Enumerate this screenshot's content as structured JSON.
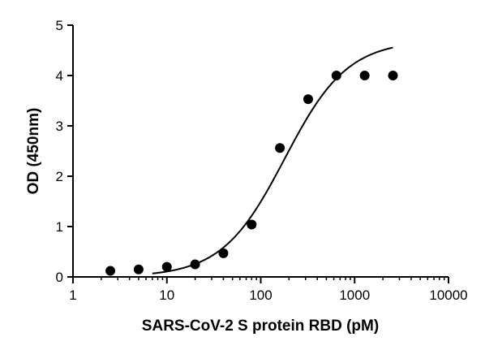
{
  "chart_data": {
    "type": "scatter",
    "title": "",
    "xlabel": "SARS-CoV-2 S protein RBD (pM)",
    "ylabel": "OD (450nm)",
    "xscale": "log",
    "xlim": [
      1,
      10000
    ],
    "ylim": [
      0,
      5
    ],
    "xticks": [
      "1",
      "10",
      "100",
      "1000",
      "10000"
    ],
    "yticks": [
      "0",
      "1",
      "2",
      "3",
      "4",
      "5"
    ],
    "grid": false,
    "legend": "none",
    "colors": {
      "points": "#000000",
      "curve": "#000000",
      "axes": "#000000"
    },
    "series": [
      {
        "x": [
          2.5,
          5,
          10,
          20,
          40,
          80,
          160,
          320,
          640,
          1280,
          2560
        ],
        "y": [
          0.12,
          0.15,
          0.2,
          0.25,
          0.47,
          1.04,
          2.56,
          3.53,
          4.0,
          4.0,
          4.0
        ]
      }
    ],
    "fit_curve": {
      "model": "four-parameter logistic",
      "bottom": 0,
      "top": 4.7,
      "ec50": 180,
      "hill": 1.3,
      "x_start": 7,
      "x_end": 2560
    }
  }
}
